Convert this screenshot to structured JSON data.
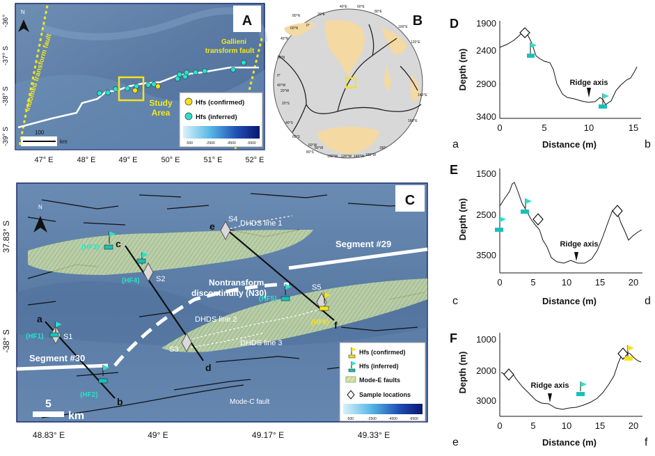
{
  "panelA": {
    "label": "A",
    "north": "N",
    "lat_labels": [
      "-36°",
      "-37° S",
      "-38° S",
      "-39° S"
    ],
    "lon_labels": [
      "47° E",
      "48° E",
      "49° E",
      "50° E",
      "51° E",
      "52° E"
    ],
    "faults": [
      "Indomed transform fault",
      "Gallieni",
      "transform fault"
    ],
    "study_area": [
      "Study",
      "Area"
    ],
    "scale_label": "100",
    "scale_unit": "km",
    "legend": {
      "confirmed": "Hfs (confirmed)",
      "inferred": "Hfs (inferred)",
      "ticks": [
        "-500",
        "-2500",
        "-4500",
        "-6500"
      ]
    },
    "colors": {
      "confirmed": "#f5e21a",
      "inferred": "#2ce0c8",
      "ridge": "#ffffff",
      "fault": "#f3e81c",
      "box": "#f7e21a"
    }
  },
  "panelB": {
    "label": "B",
    "lat_labels": [
      "80°N",
      "60°N",
      "40°N",
      "20°N",
      "0°",
      "20°S",
      "40°S",
      "60°S",
      "80°S"
    ],
    "lon_labels": [
      "40°E",
      "60°E",
      "80°E",
      "20°E",
      "0°",
      "100°E",
      "120°E",
      "140°E",
      "160°E",
      "180°",
      "20°W",
      "40°W",
      "60°W",
      "80°W",
      "100°W",
      "120°W",
      "140°W",
      "160°W"
    ]
  },
  "panelC": {
    "label": "C",
    "north": "N",
    "lat_labels": [
      "37.83° S",
      "-38° S"
    ],
    "lon_labels": [
      "48.83° E",
      "49° E",
      "49.17° E",
      "49.33° E"
    ],
    "samples": [
      "S1",
      "S2",
      "S3",
      "S4",
      "S5"
    ],
    "profile_ends": [
      "a",
      "b",
      "c",
      "d",
      "e",
      "f"
    ],
    "hfs_labels": [
      "(HF1)",
      "(HF2)",
      "(HF3)",
      "(HF4)",
      "(HF5)",
      "(HF6)"
    ],
    "lines": [
      "DHDS line 1",
      "DHDS line 2",
      "DHDS line 3"
    ],
    "segments": [
      "Segment #29",
      "Segment #30"
    ],
    "ntd": [
      "Nontransform",
      "discontinuity (N30)"
    ],
    "mode_c": "Mode-C fault",
    "scale": [
      "5",
      "km"
    ],
    "legend": {
      "confirmed": "Hfs (confirmed)",
      "inferred": "Hfs (inferred)",
      "mode_e": "Mode-E faults",
      "samples": "Sample locations",
      "ticks": [
        "-500",
        "-2500",
        "-4500",
        "-6500"
      ]
    }
  },
  "profiles": [
    {
      "label": "D",
      "ylabel": "Depth (m)",
      "xlabel": "Distance (m)",
      "start": "a",
      "end": "b",
      "yticks": [
        "1900",
        "2400",
        "2900",
        "3400"
      ],
      "xticks": [
        "0",
        "5",
        "10",
        "15"
      ],
      "annotation": "Ridge axis"
    },
    {
      "label": "E",
      "ylabel": "Depth (m)",
      "xlabel": "Distance (m)",
      "start": "c",
      "end": "d",
      "yticks": [
        "1500",
        "2500",
        "3500"
      ],
      "xticks": [
        "0",
        "5",
        "10",
        "15",
        "20"
      ],
      "annotation": "Ridge axis"
    },
    {
      "label": "F",
      "ylabel": "Depth (m)",
      "xlabel": "Distance (m)",
      "start": "e",
      "end": "f",
      "yticks": [
        "1000",
        "2000",
        "3000"
      ],
      "xticks": [
        "0",
        "5",
        "10",
        "15",
        "20"
      ],
      "annotation": "Ridge axis"
    }
  ]
}
